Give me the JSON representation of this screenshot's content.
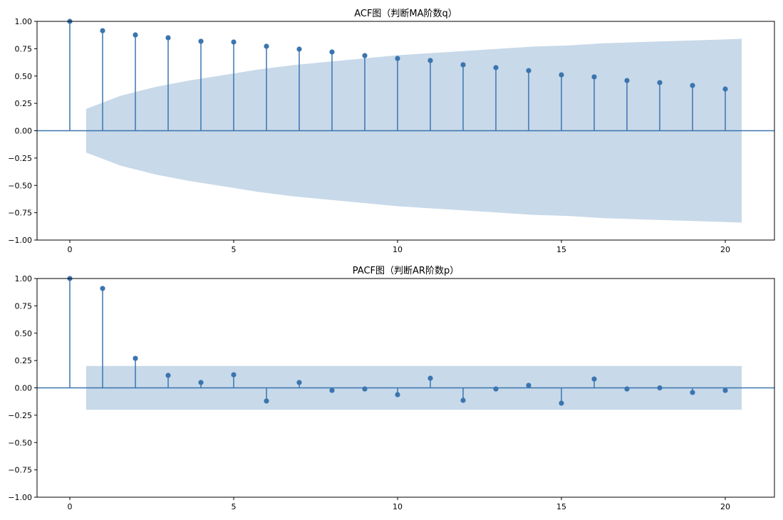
{
  "colors": {
    "stem": "#3b75af",
    "band": "#c8d9e9",
    "axis": "#000000"
  },
  "chart_data": [
    {
      "type": "stem",
      "title": "ACF图（判断MA阶数q）",
      "xlim": [
        -1,
        21.5
      ],
      "ylim": [
        -1,
        1
      ],
      "xticks": [
        0,
        5,
        10,
        15,
        20
      ],
      "yticks": [
        -1.0,
        -0.75,
        -0.5,
        -0.25,
        0.0,
        0.25,
        0.5,
        0.75,
        1.0
      ],
      "ytick_labels": [
        "−1.00",
        "−0.75",
        "−0.50",
        "−0.25",
        "0.00",
        "0.25",
        "0.50",
        "0.75",
        "1.00"
      ],
      "grid": false,
      "lags": [
        0,
        1,
        2,
        3,
        4,
        5,
        6,
        7,
        8,
        9,
        10,
        11,
        12,
        13,
        14,
        15,
        16,
        17,
        18,
        19,
        20
      ],
      "values": [
        1.0,
        0.915,
        0.876,
        0.85,
        0.818,
        0.811,
        0.772,
        0.746,
        0.72,
        0.687,
        0.661,
        0.642,
        0.603,
        0.577,
        0.55,
        0.511,
        0.492,
        0.459,
        0.44,
        0.414,
        0.381
      ],
      "confidence_band": [
        0.2,
        0.32,
        0.4,
        0.46,
        0.51,
        0.56,
        0.6,
        0.63,
        0.66,
        0.69,
        0.71,
        0.73,
        0.75,
        0.77,
        0.78,
        0.8,
        0.81,
        0.82,
        0.83,
        0.84
      ]
    },
    {
      "type": "stem",
      "title": "PACF图（判断AR阶数p）",
      "xlim": [
        -1,
        21.5
      ],
      "ylim": [
        -1,
        1
      ],
      "xticks": [
        0,
        5,
        10,
        15,
        20
      ],
      "yticks": [
        -1.0,
        -0.75,
        -0.5,
        -0.25,
        0.0,
        0.25,
        0.5,
        0.75,
        1.0
      ],
      "ytick_labels": [
        "−1.00",
        "−0.75",
        "−0.50",
        "−0.25",
        "0.00",
        "0.25",
        "0.50",
        "0.75",
        "1.00"
      ],
      "grid": false,
      "lags": [
        0,
        1,
        2,
        3,
        4,
        5,
        6,
        7,
        8,
        9,
        10,
        11,
        12,
        13,
        14,
        15,
        16,
        17,
        18,
        19,
        20
      ],
      "values": [
        1.0,
        0.909,
        0.27,
        0.114,
        0.049,
        0.12,
        -0.12,
        0.049,
        -0.023,
        -0.01,
        -0.062,
        0.088,
        -0.114,
        -0.01,
        0.023,
        -0.14,
        0.081,
        -0.01,
        0.0,
        -0.042,
        -0.023
      ],
      "confidence_band": [
        0.2,
        0.2,
        0.2,
        0.2,
        0.2,
        0.2,
        0.2,
        0.2,
        0.2,
        0.2,
        0.2,
        0.2,
        0.2,
        0.2,
        0.2,
        0.2,
        0.2,
        0.2,
        0.2,
        0.2
      ]
    }
  ]
}
